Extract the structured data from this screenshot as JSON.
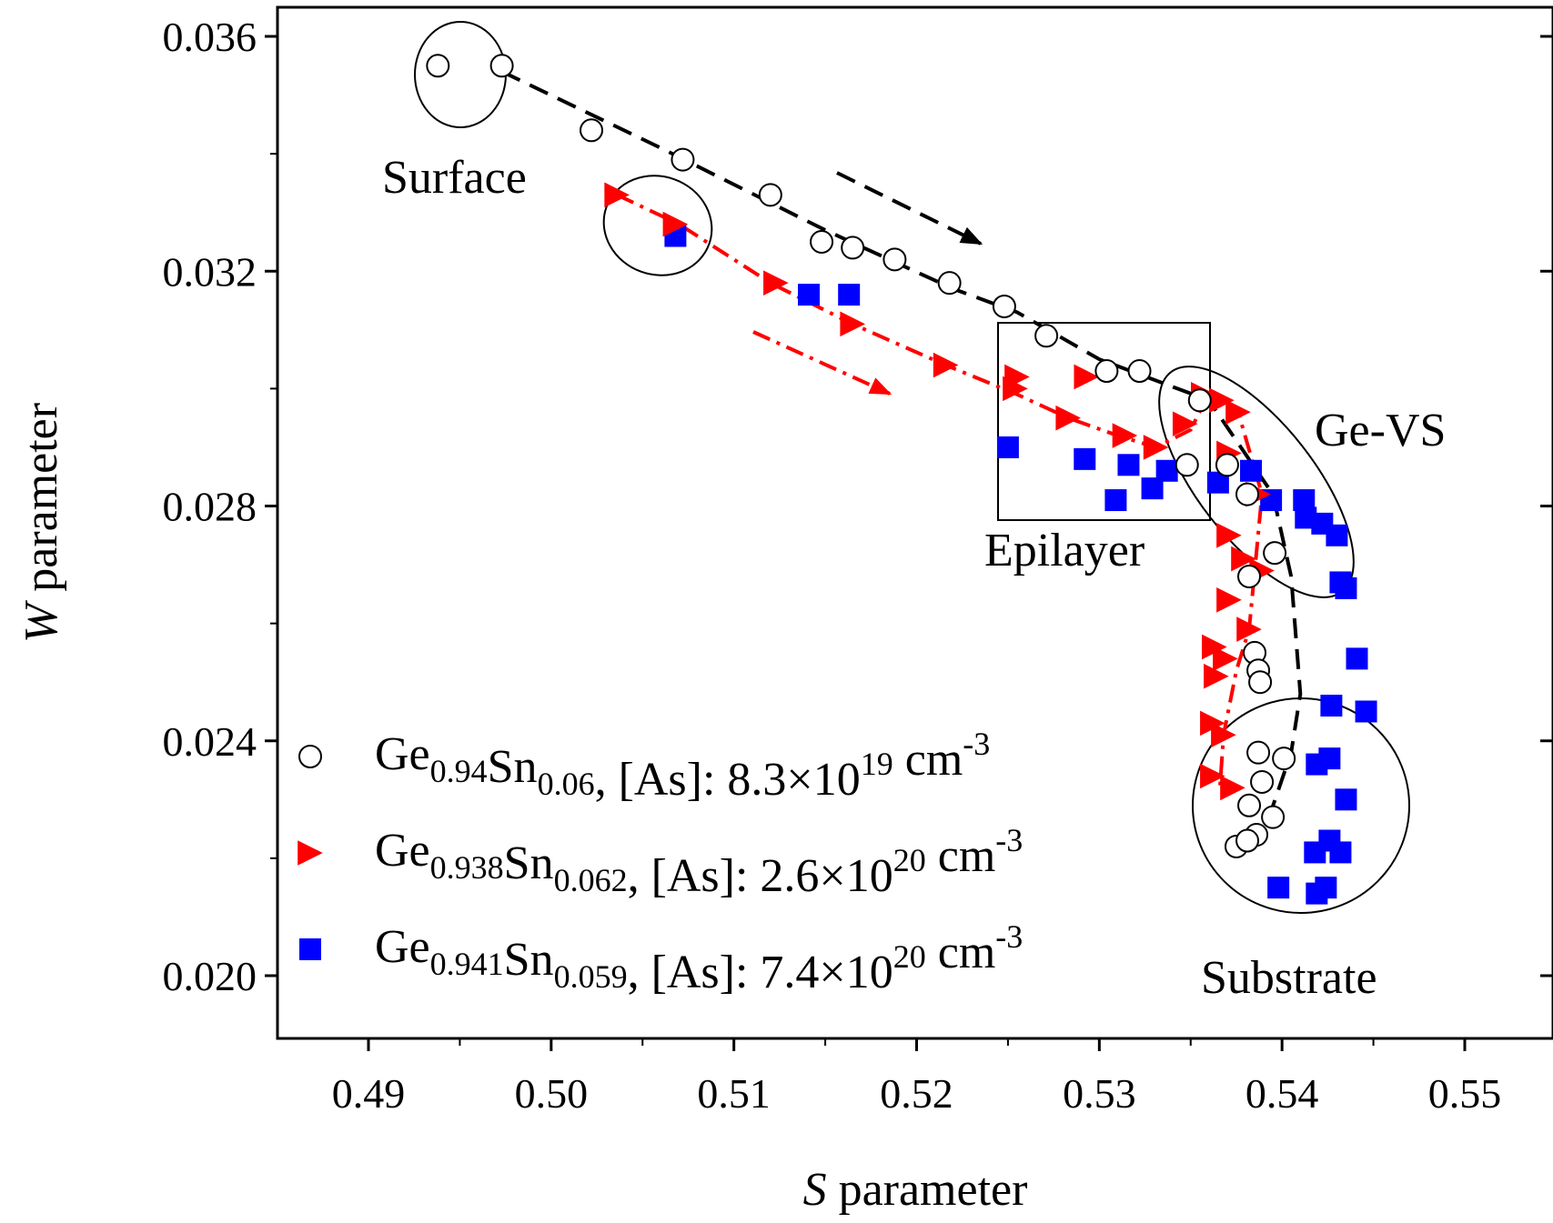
{
  "chart_data": {
    "type": "scatter",
    "xlabel": {
      "italic": "S",
      "rest": " parameter"
    },
    "ylabel": {
      "italic": "W",
      "rest": " parameter"
    },
    "xlim": [
      0.485,
      0.55
    ],
    "ylim": [
      0.019,
      0.0365
    ],
    "x_ticks": [
      "0.49",
      "0.50",
      "0.51",
      "0.52",
      "0.53",
      "0.54",
      "0.55"
    ],
    "y_ticks": [
      "0.020",
      "0.024",
      "0.028",
      "0.032",
      "0.036"
    ],
    "x_tick_values": [
      0.49,
      0.5,
      0.51,
      0.52,
      0.53,
      0.54,
      0.55
    ],
    "y_tick_values": [
      0.02,
      0.024,
      0.028,
      0.032,
      0.036
    ],
    "grid": false,
    "legend_position": "bottom-left",
    "series": [
      {
        "name": "Ge0.94Sn0.06, [As]: 8.3×10^19 cm^-3",
        "legend": {
          "base": "Ge",
          "sub1": "0.94",
          "mid": "Sn",
          "sub2": "0.06",
          "tail": ", [As]: 8.3×10",
          "sup": "19",
          "unit": " cm",
          "unit_sup": "-3"
        },
        "marker": "circle-open",
        "color": "#000000",
        "points": [
          [
            0.4938,
            0.0355
          ],
          [
            0.4973,
            0.0355
          ],
          [
            0.5022,
            0.0344
          ],
          [
            0.5072,
            0.0339
          ],
          [
            0.512,
            0.0333
          ],
          [
            0.5148,
            0.0325
          ],
          [
            0.5165,
            0.0324
          ],
          [
            0.5188,
            0.0322
          ],
          [
            0.5218,
            0.0318
          ],
          [
            0.5248,
            0.0314
          ],
          [
            0.5271,
            0.0309
          ],
          [
            0.5304,
            0.0303
          ],
          [
            0.5322,
            0.0303
          ],
          [
            0.5355,
            0.0298
          ],
          [
            0.5348,
            0.0287
          ],
          [
            0.537,
            0.0287
          ],
          [
            0.5381,
            0.0282
          ],
          [
            0.5396,
            0.0272
          ],
          [
            0.5382,
            0.0268
          ],
          [
            0.5385,
            0.0255
          ],
          [
            0.5387,
            0.0252
          ],
          [
            0.5388,
            0.025
          ],
          [
            0.5387,
            0.0238
          ],
          [
            0.5401,
            0.0237
          ],
          [
            0.5389,
            0.0233
          ],
          [
            0.5382,
            0.0229
          ],
          [
            0.5395,
            0.0227
          ],
          [
            0.5386,
            0.0224
          ],
          [
            0.5375,
            0.0222
          ],
          [
            0.5381,
            0.0223
          ]
        ]
      },
      {
        "name": "Ge0.938Sn0.062, [As]: 2.6×10^20 cm^-3",
        "legend": {
          "base": "Ge",
          "sub1": "0.938",
          "mid": "Sn",
          "sub2": "0.062",
          "tail": ", [As]: 2.6×10",
          "sup": "20",
          "unit": " cm",
          "unit_sup": "-3"
        },
        "marker": "triangle-right",
        "color": "#ff0000",
        "points": [
          [
            0.5036,
            0.0333
          ],
          [
            0.5068,
            0.0328
          ],
          [
            0.5123,
            0.0318
          ],
          [
            0.5165,
            0.0311
          ],
          [
            0.5216,
            0.0304
          ],
          [
            0.5255,
            0.0302
          ],
          [
            0.5254,
            0.03
          ],
          [
            0.5293,
            0.0302
          ],
          [
            0.5283,
            0.0295
          ],
          [
            0.5314,
            0.0292
          ],
          [
            0.5331,
            0.029
          ],
          [
            0.5347,
            0.0294
          ],
          [
            0.5357,
            0.0299
          ],
          [
            0.5367,
            0.0298
          ],
          [
            0.5376,
            0.0296
          ],
          [
            0.5371,
            0.0289
          ],
          [
            0.5387,
            0.0282
          ],
          [
            0.5371,
            0.0275
          ],
          [
            0.5379,
            0.0271
          ],
          [
            0.5371,
            0.0264
          ],
          [
            0.5382,
            0.0259
          ],
          [
            0.5389,
            0.0269
          ],
          [
            0.5363,
            0.0256
          ],
          [
            0.5369,
            0.0254
          ],
          [
            0.5364,
            0.0251
          ],
          [
            0.5362,
            0.0243
          ],
          [
            0.5368,
            0.0241
          ],
          [
            0.5362,
            0.0234
          ],
          [
            0.5373,
            0.0232
          ]
        ]
      },
      {
        "name": "Ge0.941Sn0.059, [As]: 7.4×10^20 cm^-3",
        "legend": {
          "base": "Ge",
          "sub1": "0.941",
          "mid": "Sn",
          "sub2": "0.059",
          "tail": ", [As]: 7.4×10",
          "sup": "20",
          "unit": " cm",
          "unit_sup": "-3"
        },
        "marker": "square-filled",
        "color": "#0000ff",
        "points": [
          [
            0.5068,
            0.0326
          ],
          [
            0.5141,
            0.0316
          ],
          [
            0.5163,
            0.0316
          ],
          [
            0.525,
            0.029
          ],
          [
            0.5292,
            0.0288
          ],
          [
            0.5316,
            0.0287
          ],
          [
            0.5309,
            0.0281
          ],
          [
            0.5329,
            0.0283
          ],
          [
            0.5337,
            0.0286
          ],
          [
            0.5365,
            0.0284
          ],
          [
            0.5383,
            0.0286
          ],
          [
            0.5394,
            0.0281
          ],
          [
            0.5412,
            0.0281
          ],
          [
            0.5413,
            0.0278
          ],
          [
            0.5422,
            0.0277
          ],
          [
            0.543,
            0.0275
          ],
          [
            0.5432,
            0.0267
          ],
          [
            0.5435,
            0.0266
          ],
          [
            0.5441,
            0.0254
          ],
          [
            0.5427,
            0.0246
          ],
          [
            0.5446,
            0.0245
          ],
          [
            0.5419,
            0.0236
          ],
          [
            0.5426,
            0.0237
          ],
          [
            0.5435,
            0.023
          ],
          [
            0.5418,
            0.0221
          ],
          [
            0.5426,
            0.0223
          ],
          [
            0.5432,
            0.0221
          ],
          [
            0.5398,
            0.0215
          ],
          [
            0.5419,
            0.0214
          ],
          [
            0.5424,
            0.0215
          ]
        ]
      }
    ],
    "annotations": [
      "Surface",
      "Ge-VS",
      "Epilayer",
      "Substrate"
    ],
    "guides": {
      "black_dashed": [
        [
          0.4973,
          0.0354
        ],
        [
          0.506,
          0.0341
        ],
        [
          0.515,
          0.0327
        ],
        [
          0.522,
          0.0317
        ],
        [
          0.5255,
          0.0313
        ],
        [
          0.53,
          0.0305
        ],
        [
          0.536,
          0.0298
        ],
        [
          0.5395,
          0.0282
        ],
        [
          0.5405,
          0.0268
        ],
        [
          0.541,
          0.0248
        ],
        [
          0.5405,
          0.0238
        ],
        [
          0.5394,
          0.0228
        ],
        [
          0.538,
          0.0221
        ]
      ],
      "red_dashdot": [
        [
          0.5036,
          0.0333
        ],
        [
          0.507,
          0.0328
        ],
        [
          0.512,
          0.0318
        ],
        [
          0.5165,
          0.0311
        ],
        [
          0.5216,
          0.0304
        ],
        [
          0.5255,
          0.0299
        ],
        [
          0.5283,
          0.0295
        ],
        [
          0.531,
          0.0292
        ],
        [
          0.5331,
          0.029
        ],
        [
          0.535,
          0.0293
        ],
        [
          0.5358,
          0.0298
        ],
        [
          0.5376,
          0.0296
        ],
        [
          0.5389,
          0.0282
        ],
        [
          0.5386,
          0.0272
        ],
        [
          0.5382,
          0.0259
        ],
        [
          0.5375,
          0.0252
        ],
        [
          0.5368,
          0.0241
        ],
        [
          0.5366,
          0.0232
        ]
      ]
    }
  }
}
